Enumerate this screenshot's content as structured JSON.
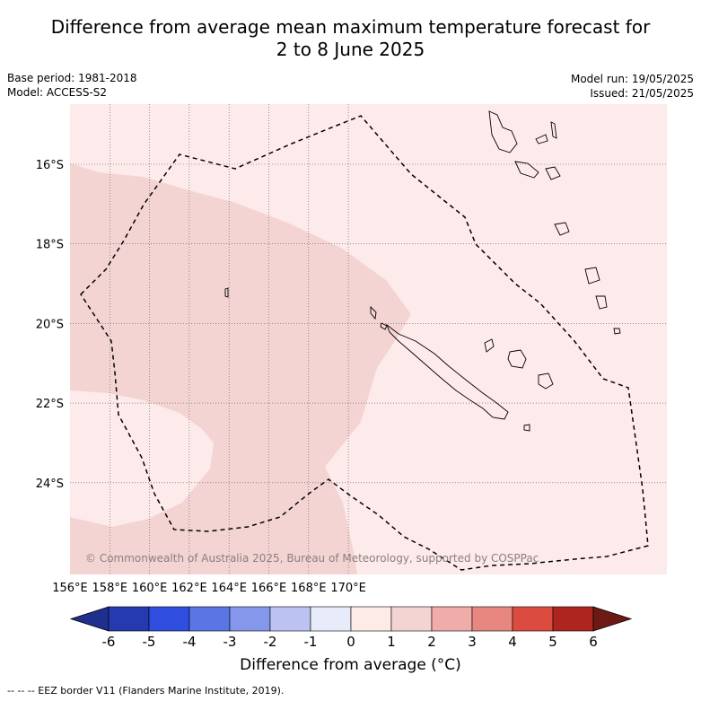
{
  "title_line1": "Difference from average mean maximum temperature forecast for",
  "title_line2": "2 to 8 June 2025",
  "meta_left": {
    "base_period": "Base period: 1981-2018",
    "model": "Model: ACCESS-S2"
  },
  "meta_right": {
    "model_run": "Model run: 19/05/2025",
    "issued": "Issued: 21/05/2025"
  },
  "map": {
    "lon_ticks": [
      "156°E",
      "158°E",
      "160°E",
      "162°E",
      "164°E",
      "166°E",
      "168°E",
      "170°E"
    ],
    "lat_ticks": [
      "16°S",
      "18°S",
      "20°S",
      "22°S",
      "24°S"
    ],
    "copyright": "© Commonwealth of Australia 2025, Bureau of Meteorology, supported by COSPPac",
    "colors": {
      "band_0_1": "#fcebea",
      "band_1_2": "#f4d4d3",
      "gridline": "#555555",
      "eez": "#000000"
    }
  },
  "colorbar": {
    "labels": [
      "-6",
      "-5",
      "-4",
      "-3",
      "-2",
      "-1",
      "0",
      "1",
      "2",
      "3",
      "4",
      "5",
      "6"
    ],
    "colors": [
      "#202e8e",
      "#243aae",
      "#2f4ddf",
      "#5a76e4",
      "#8497ea",
      "#bcc3f2",
      "#e8ebfa",
      "#fcebe7",
      "#f4d4d3",
      "#f0aca9",
      "#e8877f",
      "#dc4b40",
      "#ae2520",
      "#6e1a14"
    ],
    "label": "Difference from average (°C)"
  },
  "legend_note": "-- -- -- EEZ border V11 (Flanders Marine Institute, 2019)."
}
